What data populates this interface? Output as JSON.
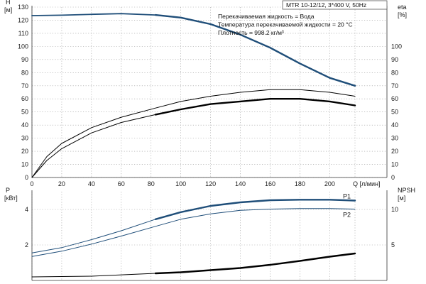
{
  "header": {
    "title": "MTR 10-12/12, 3*400 V, 50Hz"
  },
  "conditions": [
    "Перекачиваемая жидкость = Вода",
    "Температура перекачиваемой жидкости = 20 °C",
    "Плотность = 998.2 кг/м³"
  ],
  "colors": {
    "blue": "#1f4e79",
    "black": "#000000",
    "grid": "#9a9a9a"
  },
  "chart_data": [
    {
      "type": "line",
      "x_label": "Q [л/мин]",
      "x_ticks": [
        0,
        20,
        40,
        60,
        80,
        100,
        120,
        140,
        160,
        180,
        200
      ],
      "xlim": [
        0,
        217
      ],
      "left_axis": {
        "label_top": "H",
        "label_unit": "[м]",
        "ylim": [
          0,
          130
        ],
        "ticks": [
          0,
          10,
          20,
          30,
          40,
          50,
          60,
          70,
          80,
          90,
          100,
          110,
          120,
          130
        ]
      },
      "right_axis": {
        "label_top": "eta",
        "label_unit": "[%]",
        "ylim": [
          0,
          130
        ],
        "ticks": [
          0,
          10,
          20,
          30,
          40,
          50,
          60,
          70,
          80,
          90,
          100
        ]
      },
      "series": [
        {
          "axis": "left",
          "color": "#1f4e79",
          "width": 1.8,
          "thick_from": 83,
          "points": [
            [
              0,
              123.5
            ],
            [
              20,
              123.8
            ],
            [
              40,
              124.5
            ],
            [
              60,
              125
            ],
            [
              83,
              124
            ],
            [
              100,
              122
            ],
            [
              120,
              117
            ],
            [
              140,
              109
            ],
            [
              160,
              99
            ],
            [
              180,
              87
            ],
            [
              200,
              76
            ],
            [
              217,
              70
            ]
          ]
        },
        {
          "axis": "right",
          "color": "#000000",
          "width": 1.0,
          "thick_from": 9999,
          "points": [
            [
              0,
              0
            ],
            [
              10,
              16
            ],
            [
              20,
              26
            ],
            [
              40,
              38
            ],
            [
              60,
              46
            ],
            [
              83,
              53
            ],
            [
              100,
              58
            ],
            [
              120,
              62
            ],
            [
              140,
              65
            ],
            [
              160,
              67
            ],
            [
              180,
              67
            ],
            [
              200,
              65
            ],
            [
              217,
              62
            ]
          ]
        },
        {
          "axis": "right",
          "color": "#000000",
          "width": 1.0,
          "thick_from": 83,
          "points": [
            [
              0,
              0
            ],
            [
              10,
              13
            ],
            [
              20,
              22
            ],
            [
              40,
              34
            ],
            [
              60,
              42
            ],
            [
              83,
              48
            ],
            [
              100,
              52
            ],
            [
              120,
              56
            ],
            [
              140,
              58
            ],
            [
              160,
              60
            ],
            [
              180,
              60
            ],
            [
              200,
              58
            ],
            [
              217,
              55
            ]
          ]
        }
      ]
    },
    {
      "type": "line",
      "xlim": [
        0,
        217
      ],
      "left_axis": {
        "label_top": "P",
        "label_unit": "[кВт]",
        "ylim": [
          0,
          5
        ],
        "ticks": [
          2,
          4
        ]
      },
      "right_axis": {
        "label_top": "NPSH",
        "label_unit": "[м]",
        "ylim": [
          0,
          12.5
        ],
        "ticks": [
          5,
          10
        ]
      },
      "series": [
        {
          "name": "P1",
          "axis": "left",
          "color": "#1f4e79",
          "width": 1.0,
          "thick_from": 83,
          "points": [
            [
              0,
              1.55
            ],
            [
              20,
              1.85
            ],
            [
              40,
              2.3
            ],
            [
              60,
              2.8
            ],
            [
              83,
              3.45
            ],
            [
              100,
              3.85
            ],
            [
              120,
              4.2
            ],
            [
              140,
              4.4
            ],
            [
              160,
              4.52
            ],
            [
              180,
              4.55
            ],
            [
              200,
              4.55
            ],
            [
              217,
              4.5
            ]
          ]
        },
        {
          "name": "P2",
          "axis": "left",
          "color": "#1f4e79",
          "width": 1.0,
          "thick_from": 9999,
          "points": [
            [
              0,
              1.35
            ],
            [
              20,
              1.65
            ],
            [
              40,
              2.05
            ],
            [
              60,
              2.5
            ],
            [
              83,
              3.05
            ],
            [
              100,
              3.45
            ],
            [
              120,
              3.75
            ],
            [
              140,
              3.95
            ],
            [
              160,
              4.02
            ],
            [
              180,
              4.05
            ],
            [
              200,
              4.05
            ],
            [
              217,
              4.02
            ]
          ]
        },
        {
          "axis": "right",
          "color": "#000000",
          "width": 1.0,
          "thick_from": 83,
          "points": [
            [
              0,
              0.5
            ],
            [
              40,
              0.6
            ],
            [
              83,
              1.0
            ],
            [
              100,
              1.15
            ],
            [
              120,
              1.45
            ],
            [
              140,
              1.75
            ],
            [
              160,
              2.2
            ],
            [
              180,
              2.75
            ],
            [
              200,
              3.35
            ],
            [
              217,
              3.8
            ]
          ]
        }
      ]
    }
  ]
}
